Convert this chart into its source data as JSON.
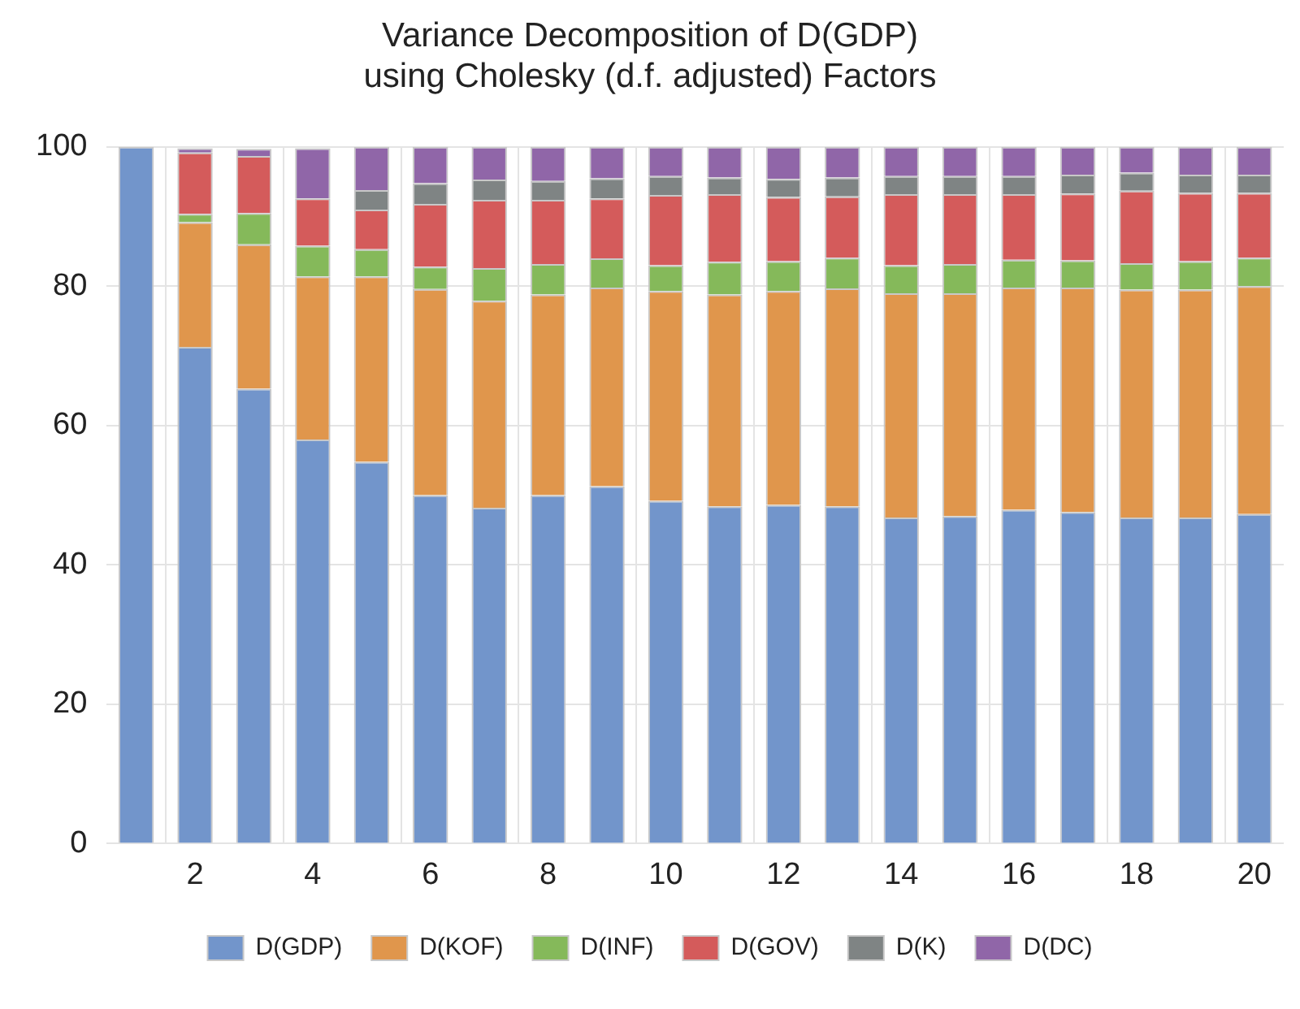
{
  "chart_data": {
    "type": "bar",
    "stacked": true,
    "title": "Variance Decomposition of D(GDP)\nusing Cholesky (d.f. adjusted) Factors",
    "categories": [
      null,
      "2",
      null,
      "4",
      null,
      "6",
      null,
      "8",
      null,
      "10",
      null,
      "12",
      null,
      "14",
      null,
      "16",
      null,
      "18",
      null,
      "20"
    ],
    "series": [
      {
        "name": "D(GDP)",
        "color": "#7295cb",
        "values": [
          100,
          71.3,
          65.3,
          58.0,
          54.8,
          50.0,
          48.2,
          50.0,
          51.3,
          49.2,
          48.4,
          48.6,
          48.4,
          46.8,
          47.0,
          47.9,
          47.6,
          46.8,
          46.8,
          47.3
        ]
      },
      {
        "name": "D(KOF)",
        "color": "#e0964c",
        "values": [
          0,
          17.9,
          20.7,
          23.4,
          26.6,
          29.6,
          29.7,
          28.8,
          28.5,
          30.1,
          30.4,
          30.7,
          31.3,
          32.2,
          32.0,
          31.9,
          32.2,
          32.7,
          32.7,
          32.7
        ]
      },
      {
        "name": "D(INF)",
        "color": "#85b95a",
        "values": [
          0,
          1.2,
          4.5,
          4.4,
          3.9,
          3.2,
          4.7,
          4.4,
          4.2,
          3.7,
          4.7,
          4.3,
          4.4,
          4.0,
          4.2,
          4.0,
          3.9,
          3.8,
          4.1,
          4.1
        ]
      },
      {
        "name": "D(GOV)",
        "color": "#d45b5b",
        "values": [
          0,
          8.8,
          8.2,
          6.8,
          5.7,
          9.0,
          9.8,
          9.2,
          8.6,
          10.1,
          9.7,
          9.2,
          8.8,
          10.2,
          10.0,
          9.4,
          9.6,
          10.4,
          9.8,
          9.3
        ]
      },
      {
        "name": "D(K)",
        "color": "#7f8484",
        "values": [
          0,
          null,
          null,
          null,
          2.8,
          3.0,
          2.9,
          2.7,
          2.9,
          2.7,
          2.4,
          2.6,
          2.7,
          2.6,
          2.6,
          2.6,
          2.7,
          2.6,
          2.6,
          2.6
        ]
      },
      {
        "name": "D(DC)",
        "color": "#9066a8",
        "values": [
          0,
          0.6,
          1.0,
          7.2,
          6.2,
          5.2,
          4.7,
          4.9,
          4.5,
          4.2,
          4.4,
          4.6,
          4.4,
          4.2,
          4.2,
          4.2,
          4.0,
          3.7,
          4.0,
          4.0
        ]
      }
    ],
    "ylim": [
      0,
      100
    ],
    "yticks": [
      0,
      20,
      40,
      60,
      80,
      100
    ],
    "grid": true,
    "legend": "bottom"
  }
}
